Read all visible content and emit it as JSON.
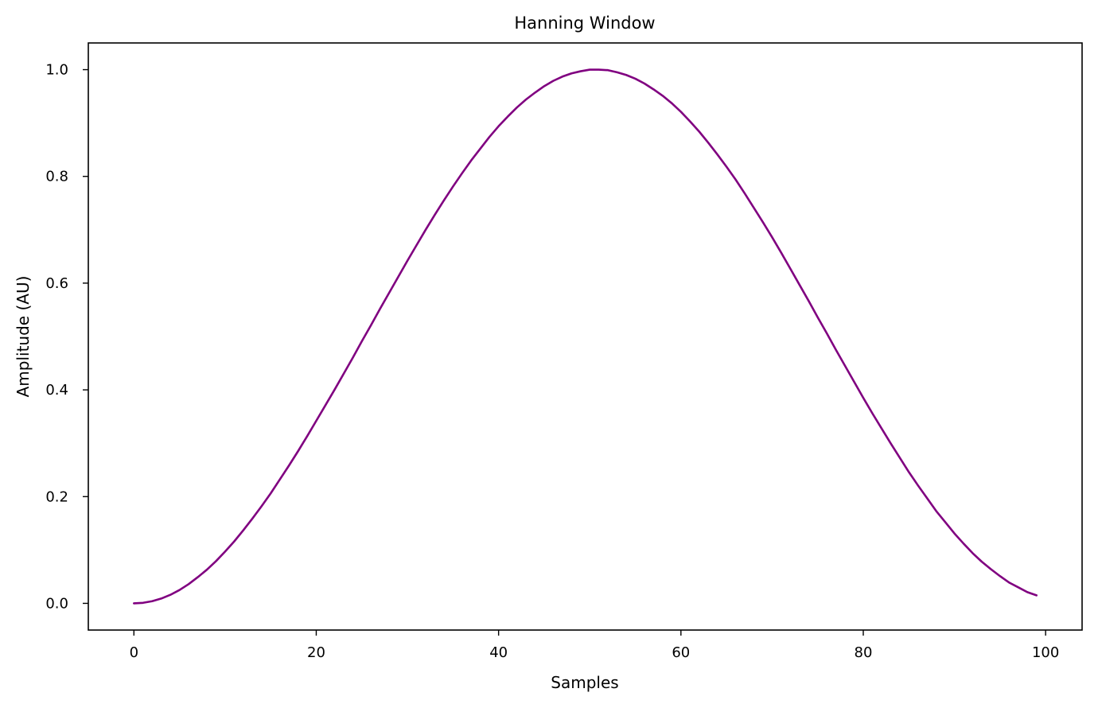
{
  "chart_data": {
    "type": "line",
    "title": "Hanning Window",
    "xlabel": "Samples",
    "ylabel": "Amplitude (AU)",
    "xlim": [
      -5,
      104
    ],
    "ylim": [
      -0.05,
      1.05
    ],
    "xticks": [
      0,
      20,
      40,
      60,
      80,
      100
    ],
    "yticks": [
      0.0,
      0.2,
      0.4,
      0.6,
      0.8,
      1.0
    ],
    "xtick_labels": [
      "0",
      "20",
      "40",
      "60",
      "80",
      "100"
    ],
    "ytick_labels": [
      "0.0",
      "0.2",
      "0.4",
      "0.6",
      "0.8",
      "1.0"
    ],
    "grid": false,
    "series": [
      {
        "color": "#800080",
        "x": [
          0,
          1,
          2,
          3,
          4,
          5,
          6,
          7,
          8,
          9,
          10,
          11,
          12,
          13,
          14,
          15,
          16,
          17,
          18,
          19,
          20,
          21,
          22,
          23,
          24,
          25,
          26,
          27,
          28,
          29,
          30,
          31,
          32,
          33,
          34,
          35,
          36,
          37,
          38,
          39,
          40,
          41,
          42,
          43,
          44,
          45,
          46,
          47,
          48,
          49,
          50,
          51,
          52,
          53,
          54,
          55,
          56,
          57,
          58,
          59,
          60,
          61,
          62,
          63,
          64,
          65,
          66,
          67,
          68,
          69,
          70,
          71,
          72,
          73,
          74,
          75,
          76,
          77,
          78,
          79,
          80,
          81,
          82,
          83,
          84,
          85,
          86,
          87,
          88,
          89,
          90,
          91,
          92,
          93,
          94,
          95,
          96,
          97,
          98,
          99
        ],
        "y": [
          0.0,
          0.001,
          0.004,
          0.009,
          0.016,
          0.025,
          0.036,
          0.049,
          0.063,
          0.079,
          0.097,
          0.116,
          0.137,
          0.159,
          0.182,
          0.206,
          0.232,
          0.258,
          0.285,
          0.313,
          0.342,
          0.371,
          0.4,
          0.43,
          0.46,
          0.491,
          0.521,
          0.552,
          0.582,
          0.612,
          0.642,
          0.671,
          0.7,
          0.728,
          0.755,
          0.781,
          0.806,
          0.83,
          0.852,
          0.874,
          0.894,
          0.912,
          0.929,
          0.944,
          0.957,
          0.969,
          0.979,
          0.987,
          0.993,
          0.997,
          1.0,
          1.0,
          0.999,
          0.995,
          0.99,
          0.983,
          0.974,
          0.963,
          0.951,
          0.937,
          0.921,
          0.903,
          0.884,
          0.863,
          0.841,
          0.818,
          0.794,
          0.768,
          0.741,
          0.714,
          0.686,
          0.657,
          0.627,
          0.597,
          0.567,
          0.536,
          0.506,
          0.475,
          0.445,
          0.415,
          0.385,
          0.356,
          0.328,
          0.3,
          0.273,
          0.246,
          0.221,
          0.197,
          0.173,
          0.152,
          0.131,
          0.112,
          0.094,
          0.078,
          0.064,
          0.051,
          0.039,
          0.03,
          0.021,
          0.015
        ]
      }
    ]
  }
}
